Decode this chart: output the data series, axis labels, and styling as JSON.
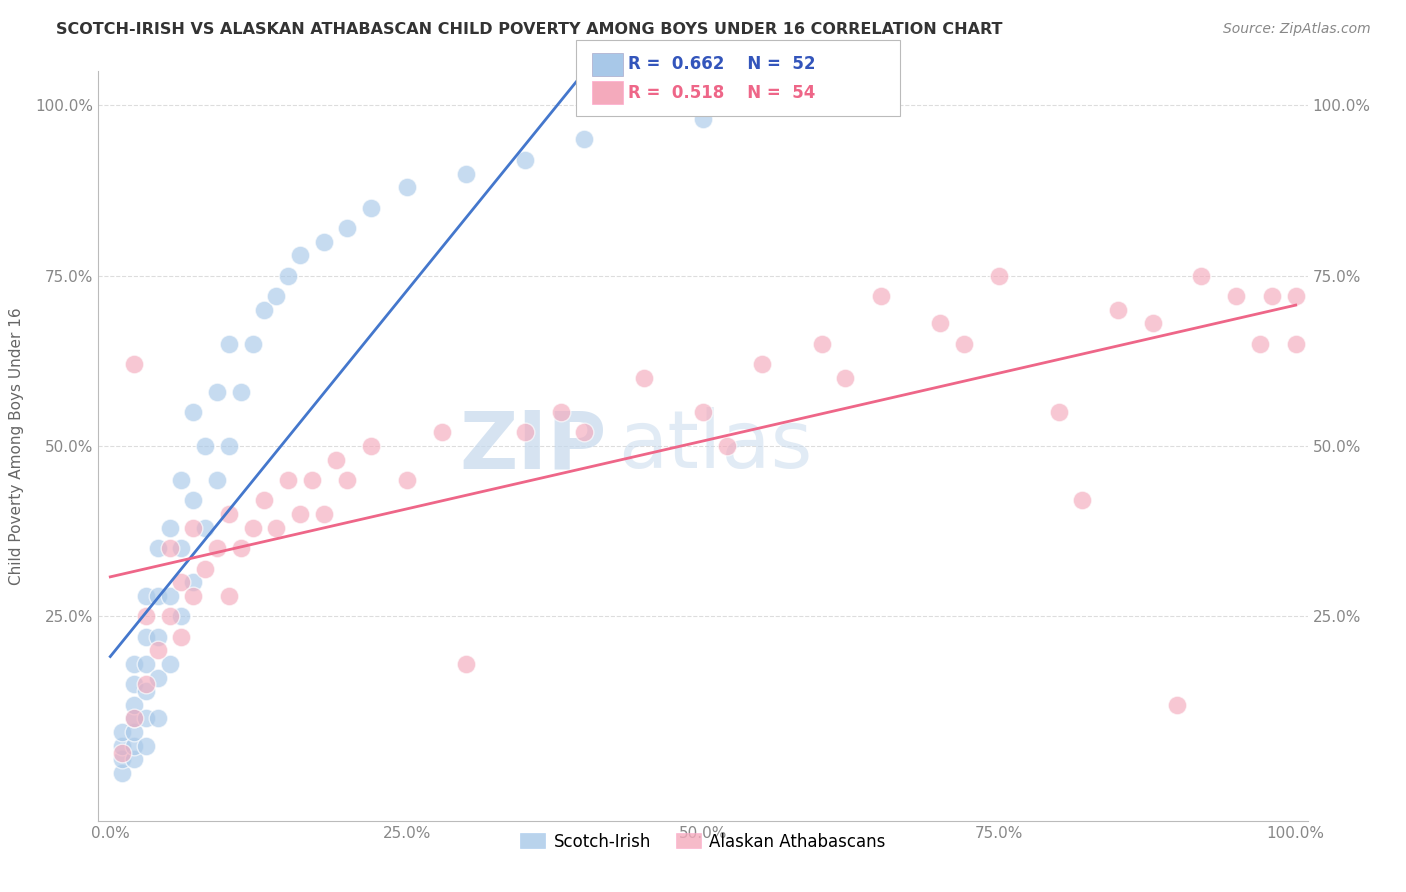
{
  "title": "SCOTCH-IRISH VS ALASKAN ATHABASCAN CHILD POVERTY AMONG BOYS UNDER 16 CORRELATION CHART",
  "source": "Source: ZipAtlas.com",
  "ylabel": "Child Poverty Among Boys Under 16",
  "xlim": [
    -0.01,
    1.01
  ],
  "ylim": [
    -0.05,
    1.05
  ],
  "xticks": [
    0.0,
    0.25,
    0.5,
    0.75,
    1.0
  ],
  "yticks": [
    0.25,
    0.5,
    0.75,
    1.0
  ],
  "xtick_labels": [
    "0.0%",
    "25.0%",
    "50.0%",
    "75.0%",
    "100.0%"
  ],
  "ytick_labels": [
    "25.0%",
    "50.0%",
    "75.0%",
    "100.0%"
  ],
  "right_ytick_labels": [
    "25.0%",
    "50.0%",
    "75.0%",
    "100.0%"
  ],
  "blue_R": 0.662,
  "blue_N": 52,
  "pink_R": 0.518,
  "pink_N": 54,
  "blue_label": "Scotch-Irish",
  "pink_label": "Alaskan Athabascans",
  "blue_color": "#A8C8E8",
  "pink_color": "#F4AABC",
  "blue_edge_color": "#A8C8E8",
  "pink_edge_color": "#F4AABC",
  "blue_line_color": "#4477CC",
  "pink_line_color": "#EE6688",
  "legend_text_color": "#3355BB",
  "watermark_color": "#D0E4F0",
  "background_color": "#FFFFFF",
  "title_color": "#333333",
  "source_color": "#888888",
  "axis_label_color": "#666666",
  "tick_color": "#888888",
  "grid_color": "#DDDDDD",
  "blue_x": [
    0.01,
    0.01,
    0.01,
    0.01,
    0.02,
    0.02,
    0.02,
    0.02,
    0.02,
    0.02,
    0.02,
    0.03,
    0.03,
    0.03,
    0.03,
    0.03,
    0.03,
    0.04,
    0.04,
    0.04,
    0.04,
    0.04,
    0.05,
    0.05,
    0.05,
    0.06,
    0.06,
    0.06,
    0.07,
    0.07,
    0.07,
    0.08,
    0.08,
    0.09,
    0.09,
    0.1,
    0.1,
    0.11,
    0.12,
    0.13,
    0.14,
    0.15,
    0.16,
    0.18,
    0.2,
    0.22,
    0.25,
    0.3,
    0.35,
    0.4,
    0.5,
    0.55
  ],
  "blue_y": [
    0.02,
    0.04,
    0.06,
    0.08,
    0.04,
    0.06,
    0.08,
    0.1,
    0.12,
    0.15,
    0.18,
    0.06,
    0.1,
    0.14,
    0.18,
    0.22,
    0.28,
    0.1,
    0.16,
    0.22,
    0.28,
    0.35,
    0.18,
    0.28,
    0.38,
    0.25,
    0.35,
    0.45,
    0.3,
    0.42,
    0.55,
    0.38,
    0.5,
    0.45,
    0.58,
    0.5,
    0.65,
    0.58,
    0.65,
    0.7,
    0.72,
    0.75,
    0.78,
    0.8,
    0.82,
    0.85,
    0.88,
    0.9,
    0.92,
    0.95,
    0.98,
    1.0
  ],
  "pink_x": [
    0.01,
    0.02,
    0.02,
    0.03,
    0.03,
    0.04,
    0.05,
    0.05,
    0.06,
    0.06,
    0.07,
    0.07,
    0.08,
    0.09,
    0.1,
    0.1,
    0.11,
    0.12,
    0.13,
    0.14,
    0.15,
    0.16,
    0.17,
    0.18,
    0.19,
    0.2,
    0.22,
    0.25,
    0.28,
    0.3,
    0.35,
    0.38,
    0.4,
    0.45,
    0.5,
    0.52,
    0.55,
    0.6,
    0.62,
    0.65,
    0.7,
    0.72,
    0.75,
    0.8,
    0.82,
    0.85,
    0.88,
    0.9,
    0.92,
    0.95,
    0.97,
    0.98,
    1.0,
    1.0
  ],
  "pink_y": [
    0.05,
    0.62,
    0.1,
    0.15,
    0.25,
    0.2,
    0.25,
    0.35,
    0.22,
    0.3,
    0.28,
    0.38,
    0.32,
    0.35,
    0.28,
    0.4,
    0.35,
    0.38,
    0.42,
    0.38,
    0.45,
    0.4,
    0.45,
    0.4,
    0.48,
    0.45,
    0.5,
    0.45,
    0.52,
    0.18,
    0.52,
    0.55,
    0.52,
    0.6,
    0.55,
    0.5,
    0.62,
    0.65,
    0.6,
    0.72,
    0.68,
    0.65,
    0.75,
    0.55,
    0.42,
    0.7,
    0.68,
    0.12,
    0.75,
    0.72,
    0.65,
    0.72,
    0.65,
    0.72
  ]
}
